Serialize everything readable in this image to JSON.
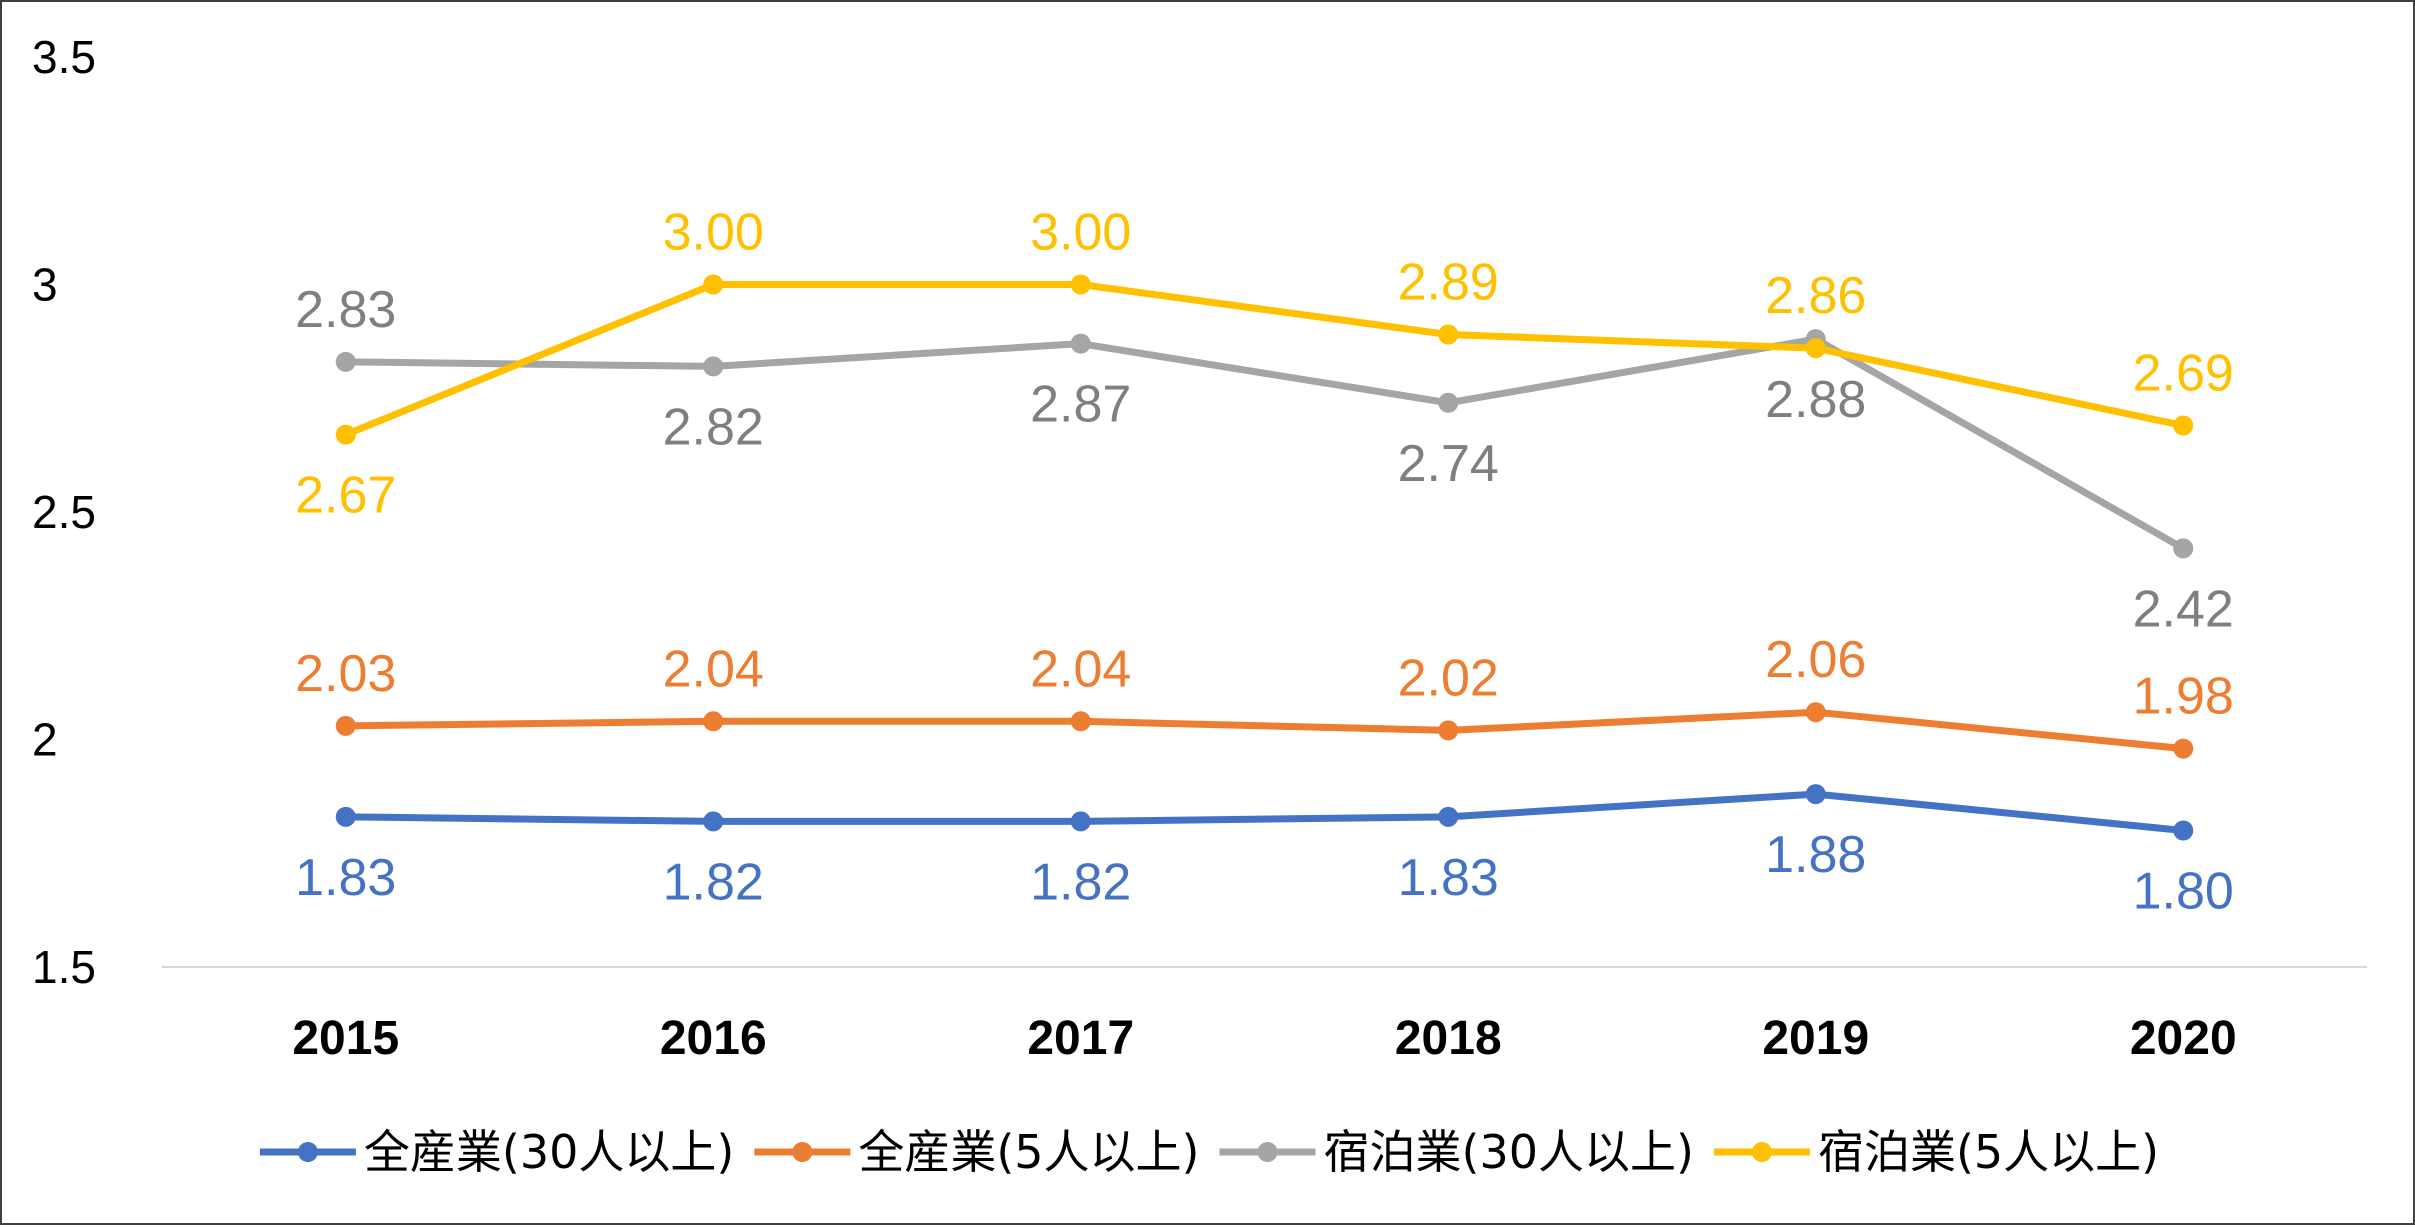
{
  "chart_data": {
    "type": "line",
    "title": "",
    "xlabel": "",
    "ylabel": "",
    "categories": [
      "2015",
      "2016",
      "2017",
      "2018",
      "2019",
      "2020"
    ],
    "ylim": [
      1.5,
      3.5
    ],
    "yticks": [
      "1.5",
      "2",
      "2.5",
      "3",
      "3.5"
    ],
    "ytick_values": [
      1.5,
      2.0,
      2.5,
      3.0,
      3.5
    ],
    "grid": false,
    "legend_position": "bottom",
    "series": [
      {
        "name": "全産業(30人以上)",
        "color": "#4472C4",
        "values": [
          1.83,
          1.82,
          1.82,
          1.83,
          1.88,
          1.8
        ],
        "labels": [
          "1.83",
          "1.82",
          "1.82",
          "1.83",
          "1.88",
          "1.80"
        ],
        "label_position": [
          "below",
          "below",
          "below",
          "below",
          "below",
          "below"
        ]
      },
      {
        "name": "全産業(5人以上)",
        "color": "#ED7D31",
        "values": [
          2.03,
          2.04,
          2.04,
          2.02,
          2.06,
          1.98
        ],
        "labels": [
          "2.03",
          "2.04",
          "2.04",
          "2.02",
          "2.06",
          "1.98"
        ],
        "label_position": [
          "above",
          "above",
          "above",
          "above",
          "above",
          "above"
        ]
      },
      {
        "name": "宿泊業(30人以上)",
        "color": "#A5A5A5",
        "label_color": "#7F7F7F",
        "values": [
          2.83,
          2.82,
          2.87,
          2.74,
          2.88,
          2.42
        ],
        "labels": [
          "2.83",
          "2.82",
          "2.87",
          "2.74",
          "2.88",
          "2.42"
        ],
        "label_position": [
          "above",
          "below",
          "below",
          "below",
          "below",
          "below"
        ]
      },
      {
        "name": "宿泊業(5人以上)",
        "color": "#FFC000",
        "values": [
          2.67,
          3.0,
          3.0,
          2.89,
          2.86,
          2.69
        ],
        "labels": [
          "2.67",
          "3.00",
          "3.00",
          "2.89",
          "2.86",
          "2.69"
        ],
        "label_position": [
          "below",
          "above",
          "above",
          "above",
          "above",
          "above"
        ]
      }
    ]
  }
}
